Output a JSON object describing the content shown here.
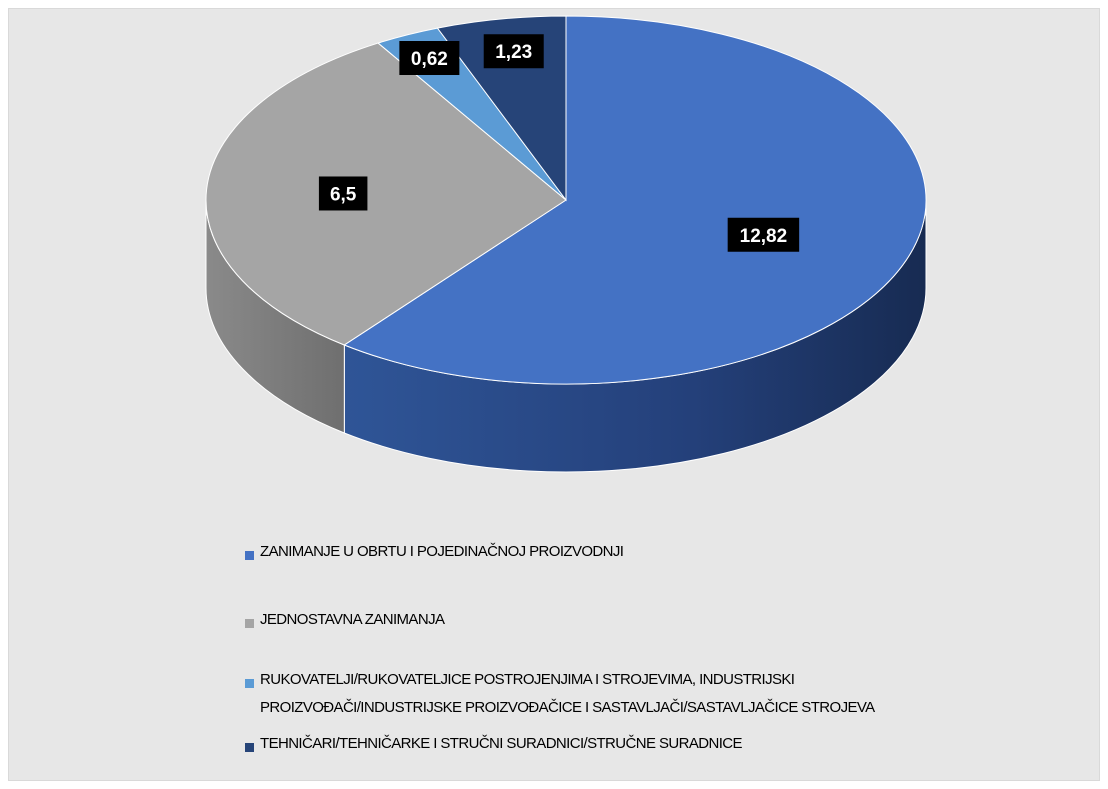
{
  "chart_data": {
    "type": "pie",
    "title": "",
    "three_d": true,
    "legend_position": "bottom",
    "series": [
      {
        "categories": [
          "ZANIMANJE U OBRTU I POJEDINAČNOJ PROIZVODNJI",
          "JEDNOSTAVNA ZANIMANJA",
          "RUKOVATELJI/RUKOVATELJICE POSTROJENJIMA I STROJEVIMA, INDUSTRIJSKI PROIZVOĐAČI/INDUSTRIJSKE PROIZVOĐAČICE I SASTAVLJAČI/SASTAVLJAČICE STROJEVA",
          "TEHNIČARI/TEHNIČARKE I STRUČNI SURADNICI/STRUČNE SURADNICE"
        ],
        "values": [
          12.82,
          6.5,
          0.62,
          1.23
        ],
        "labels": [
          "12,82",
          "6,5",
          "0,62",
          "1,23"
        ]
      }
    ],
    "colors": [
      "#4472c4",
      "#a5a5a5",
      "#5b9bd5",
      "#264478"
    ],
    "side_colors": [
      "#1f3864",
      "#7f7f7f",
      "#2e75b6",
      "#1b2f55"
    ],
    "label_background": "#000000"
  },
  "legend": {
    "items": [
      {
        "label": "ZANIMANJE U OBRTU I POJEDINAČNOJ PROIZVODNJI",
        "color": "#4472c4"
      },
      {
        "label": "JEDNOSTAVNA ZANIMANJA",
        "color": "#a5a5a5"
      },
      {
        "label": "RUKOVATELJI/RUKOVATELJICE POSTROJENJIMA I STROJEVIMA, INDUSTRIJSKI PROIZVOĐAČI/INDUSTRIJSKE PROIZVOĐAČICE I SASTAVLJAČI/SASTAVLJAČICE STROJEVA",
        "color": "#5b9bd5"
      },
      {
        "label": "TEHNIČARI/TEHNIČARKE I STRUČNI SURADNICI/STRUČNE SURADNICE",
        "color": "#264478"
      }
    ]
  }
}
